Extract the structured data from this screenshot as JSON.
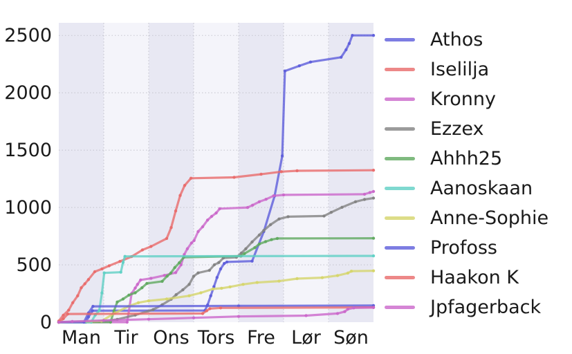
{
  "chart_data": {
    "type": "line",
    "title": "",
    "xlabel": "",
    "ylabel": "",
    "x_tick_labels": [
      "Man",
      "Tir",
      "Ons",
      "Tors",
      "Fre",
      "Lør",
      "Søn"
    ],
    "y_tick_labels": [
      "0",
      "500",
      "1000",
      "1500",
      "2000",
      "2500"
    ],
    "y_ticks": [
      0,
      500,
      1000,
      1500,
      2000,
      2500
    ],
    "ylim": [
      0,
      2610
    ],
    "x_days": 7,
    "grid": "dotted",
    "legend_position": "right",
    "band_colors": [
      "#e8e8f3",
      "#f4f4fa"
    ],
    "grid_color": "#c6c6d0",
    "text_color": "#1a1a1a",
    "series": [
      {
        "name": "Athos",
        "color": "#5d5ddb",
        "points": [
          [
            0,
            0
          ],
          [
            0.6,
            0
          ],
          [
            0.66,
            45
          ],
          [
            0.75,
            100
          ],
          [
            3.25,
            102
          ],
          [
            3.31,
            150
          ],
          [
            3.38,
            230
          ],
          [
            3.45,
            310
          ],
          [
            3.52,
            390
          ],
          [
            3.6,
            465
          ],
          [
            3.68,
            512
          ],
          [
            3.74,
            525
          ],
          [
            4.3,
            532
          ],
          [
            4.56,
            790
          ],
          [
            4.8,
            1100
          ],
          [
            4.97,
            1450
          ],
          [
            5.03,
            2190
          ],
          [
            5.35,
            2235
          ],
          [
            5.6,
            2268
          ],
          [
            6.28,
            2310
          ],
          [
            6.39,
            2375
          ],
          [
            6.46,
            2430
          ],
          [
            6.53,
            2500
          ],
          [
            7,
            2500
          ]
        ]
      },
      {
        "name": "Iselilja",
        "color": "#e96a6a",
        "points": [
          [
            0,
            10
          ],
          [
            0.1,
            60
          ],
          [
            0.22,
            105
          ],
          [
            0.31,
            170
          ],
          [
            0.42,
            230
          ],
          [
            0.5,
            300
          ],
          [
            0.58,
            335
          ],
          [
            0.66,
            372
          ],
          [
            0.8,
            440
          ],
          [
            0.96,
            465
          ],
          [
            1.12,
            492
          ],
          [
            1.36,
            530
          ],
          [
            1.62,
            572
          ],
          [
            1.86,
            630
          ],
          [
            2.05,
            660
          ],
          [
            2.4,
            730
          ],
          [
            2.5,
            825
          ],
          [
            2.6,
            970
          ],
          [
            2.7,
            1105
          ],
          [
            2.8,
            1192
          ],
          [
            2.94,
            1255
          ],
          [
            3.9,
            1263
          ],
          [
            4.5,
            1290
          ],
          [
            4.95,
            1312
          ],
          [
            5.3,
            1320
          ],
          [
            7,
            1325
          ]
        ]
      },
      {
        "name": "Kronny",
        "color": "#ca67ca",
        "points": [
          [
            0,
            0
          ],
          [
            1.52,
            0
          ],
          [
            1.62,
            250
          ],
          [
            1.7,
            298
          ],
          [
            1.75,
            330
          ],
          [
            1.82,
            368
          ],
          [
            2.05,
            382
          ],
          [
            2.35,
            408
          ],
          [
            2.6,
            432
          ],
          [
            2.72,
            500
          ],
          [
            2.79,
            590
          ],
          [
            2.86,
            640
          ],
          [
            2.95,
            690
          ],
          [
            3.01,
            712
          ],
          [
            3.1,
            790
          ],
          [
            3.2,
            832
          ],
          [
            3.31,
            890
          ],
          [
            3.4,
            922
          ],
          [
            3.5,
            952
          ],
          [
            3.58,
            990
          ],
          [
            4.2,
            1000
          ],
          [
            4.31,
            1020
          ],
          [
            4.46,
            1050
          ],
          [
            4.61,
            1072
          ],
          [
            4.78,
            1102
          ],
          [
            5.0,
            1110
          ],
          [
            6.8,
            1116
          ],
          [
            6.92,
            1130
          ],
          [
            7,
            1140
          ]
        ]
      },
      {
        "name": "Ezzex",
        "color": "#828282",
        "points": [
          [
            0,
            0
          ],
          [
            0.9,
            5
          ],
          [
            1.3,
            25
          ],
          [
            1.7,
            62
          ],
          [
            2.1,
            110
          ],
          [
            2.3,
            152
          ],
          [
            2.5,
            200
          ],
          [
            2.61,
            240
          ],
          [
            2.76,
            282
          ],
          [
            2.9,
            330
          ],
          [
            3.0,
            400
          ],
          [
            3.1,
            430
          ],
          [
            3.35,
            452
          ],
          [
            3.46,
            500
          ],
          [
            3.56,
            520
          ],
          [
            3.66,
            560
          ],
          [
            3.95,
            566
          ],
          [
            4.06,
            602
          ],
          [
            4.16,
            640
          ],
          [
            4.3,
            700
          ],
          [
            4.46,
            760
          ],
          [
            4.56,
            800
          ],
          [
            4.71,
            850
          ],
          [
            4.9,
            900
          ],
          [
            5.1,
            920
          ],
          [
            5.9,
            926
          ],
          [
            6.06,
            958
          ],
          [
            6.3,
            1002
          ],
          [
            6.6,
            1050
          ],
          [
            6.8,
            1070
          ],
          [
            7,
            1082
          ]
        ]
      },
      {
        "name": "Ahhh25",
        "color": "#5fa95f",
        "points": [
          [
            0,
            0
          ],
          [
            1.15,
            0
          ],
          [
            1.23,
            100
          ],
          [
            1.3,
            176
          ],
          [
            1.43,
            202
          ],
          [
            1.56,
            236
          ],
          [
            1.7,
            256
          ],
          [
            1.85,
            300
          ],
          [
            1.96,
            338
          ],
          [
            2.3,
            356
          ],
          [
            2.41,
            402
          ],
          [
            2.49,
            428
          ],
          [
            2.58,
            476
          ],
          [
            2.68,
            518
          ],
          [
            2.78,
            566
          ],
          [
            4.05,
            576
          ],
          [
            4.13,
            598
          ],
          [
            4.36,
            650
          ],
          [
            4.46,
            682
          ],
          [
            4.6,
            702
          ],
          [
            4.73,
            720
          ],
          [
            4.86,
            730
          ],
          [
            7,
            732
          ]
        ]
      },
      {
        "name": "Aanoskaan",
        "color": "#5fd0c4",
        "points": [
          [
            0,
            0
          ],
          [
            0.72,
            0
          ],
          [
            0.81,
            62
          ],
          [
            0.9,
            102
          ],
          [
            0.96,
            255
          ],
          [
            1.01,
            430
          ],
          [
            1.38,
            436
          ],
          [
            1.43,
            520
          ],
          [
            1.47,
            574
          ],
          [
            7,
            578
          ]
        ]
      },
      {
        "name": "Anne-Sophie",
        "color": "#d5d56a",
        "points": [
          [
            0,
            0
          ],
          [
            0.95,
            10
          ],
          [
            1.25,
            80
          ],
          [
            1.56,
            140
          ],
          [
            1.77,
            170
          ],
          [
            2.0,
            186
          ],
          [
            2.4,
            202
          ],
          [
            2.9,
            230
          ],
          [
            3.16,
            256
          ],
          [
            3.43,
            290
          ],
          [
            3.62,
            296
          ],
          [
            3.81,
            308
          ],
          [
            4.1,
            330
          ],
          [
            4.41,
            346
          ],
          [
            4.9,
            358
          ],
          [
            5.3,
            380
          ],
          [
            5.86,
            388
          ],
          [
            6.2,
            406
          ],
          [
            6.43,
            428
          ],
          [
            6.51,
            445
          ],
          [
            7,
            448
          ]
        ]
      },
      {
        "name": "Profoss",
        "color": "#5d5ddb",
        "points": [
          [
            0,
            0
          ],
          [
            0.56,
            0
          ],
          [
            0.66,
            80
          ],
          [
            0.76,
            138
          ],
          [
            4.0,
            142
          ],
          [
            7,
            145
          ]
        ]
      },
      {
        "name": "Haakon K",
        "color": "#e96a6a",
        "points": [
          [
            0,
            0
          ],
          [
            0.1,
            30
          ],
          [
            0.2,
            72
          ],
          [
            3.2,
            76
          ],
          [
            3.29,
            100
          ],
          [
            3.36,
            118
          ],
          [
            3.6,
            125
          ],
          [
            7,
            129
          ]
        ]
      },
      {
        "name": "Jpfagerback",
        "color": "#ca67ca",
        "points": [
          [
            0,
            0
          ],
          [
            0.3,
            6
          ],
          [
            1.0,
            15
          ],
          [
            2.0,
            26
          ],
          [
            3.0,
            38
          ],
          [
            4.0,
            50
          ],
          [
            5.5,
            57
          ],
          [
            6.2,
            76
          ],
          [
            6.36,
            92
          ],
          [
            6.43,
            114
          ],
          [
            6.56,
            125
          ],
          [
            7,
            128
          ]
        ]
      }
    ]
  }
}
